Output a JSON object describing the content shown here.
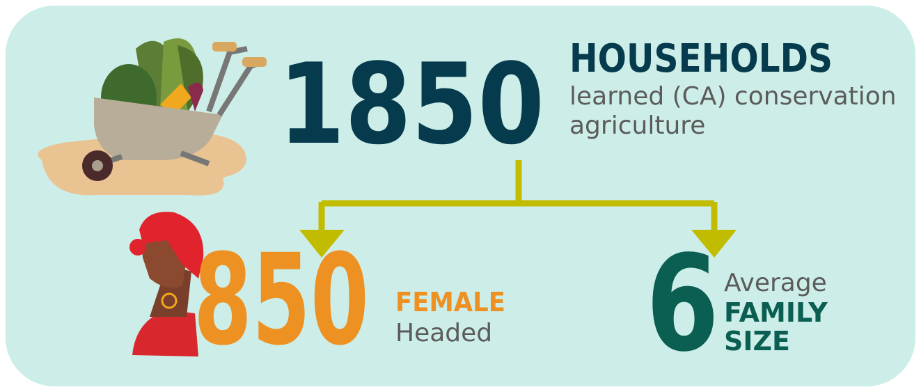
{
  "main": {
    "number": "1850",
    "heading": "HOUSEHOLDS",
    "description_lines": [
      "learned (CA) conservation",
      "agriculture"
    ]
  },
  "female": {
    "number": "850",
    "heading": "FEMALE",
    "subheading": "Headed"
  },
  "family": {
    "number": "6",
    "prefix": "Average",
    "heading_lines": [
      "FAMILY",
      "SIZE"
    ]
  }
}
